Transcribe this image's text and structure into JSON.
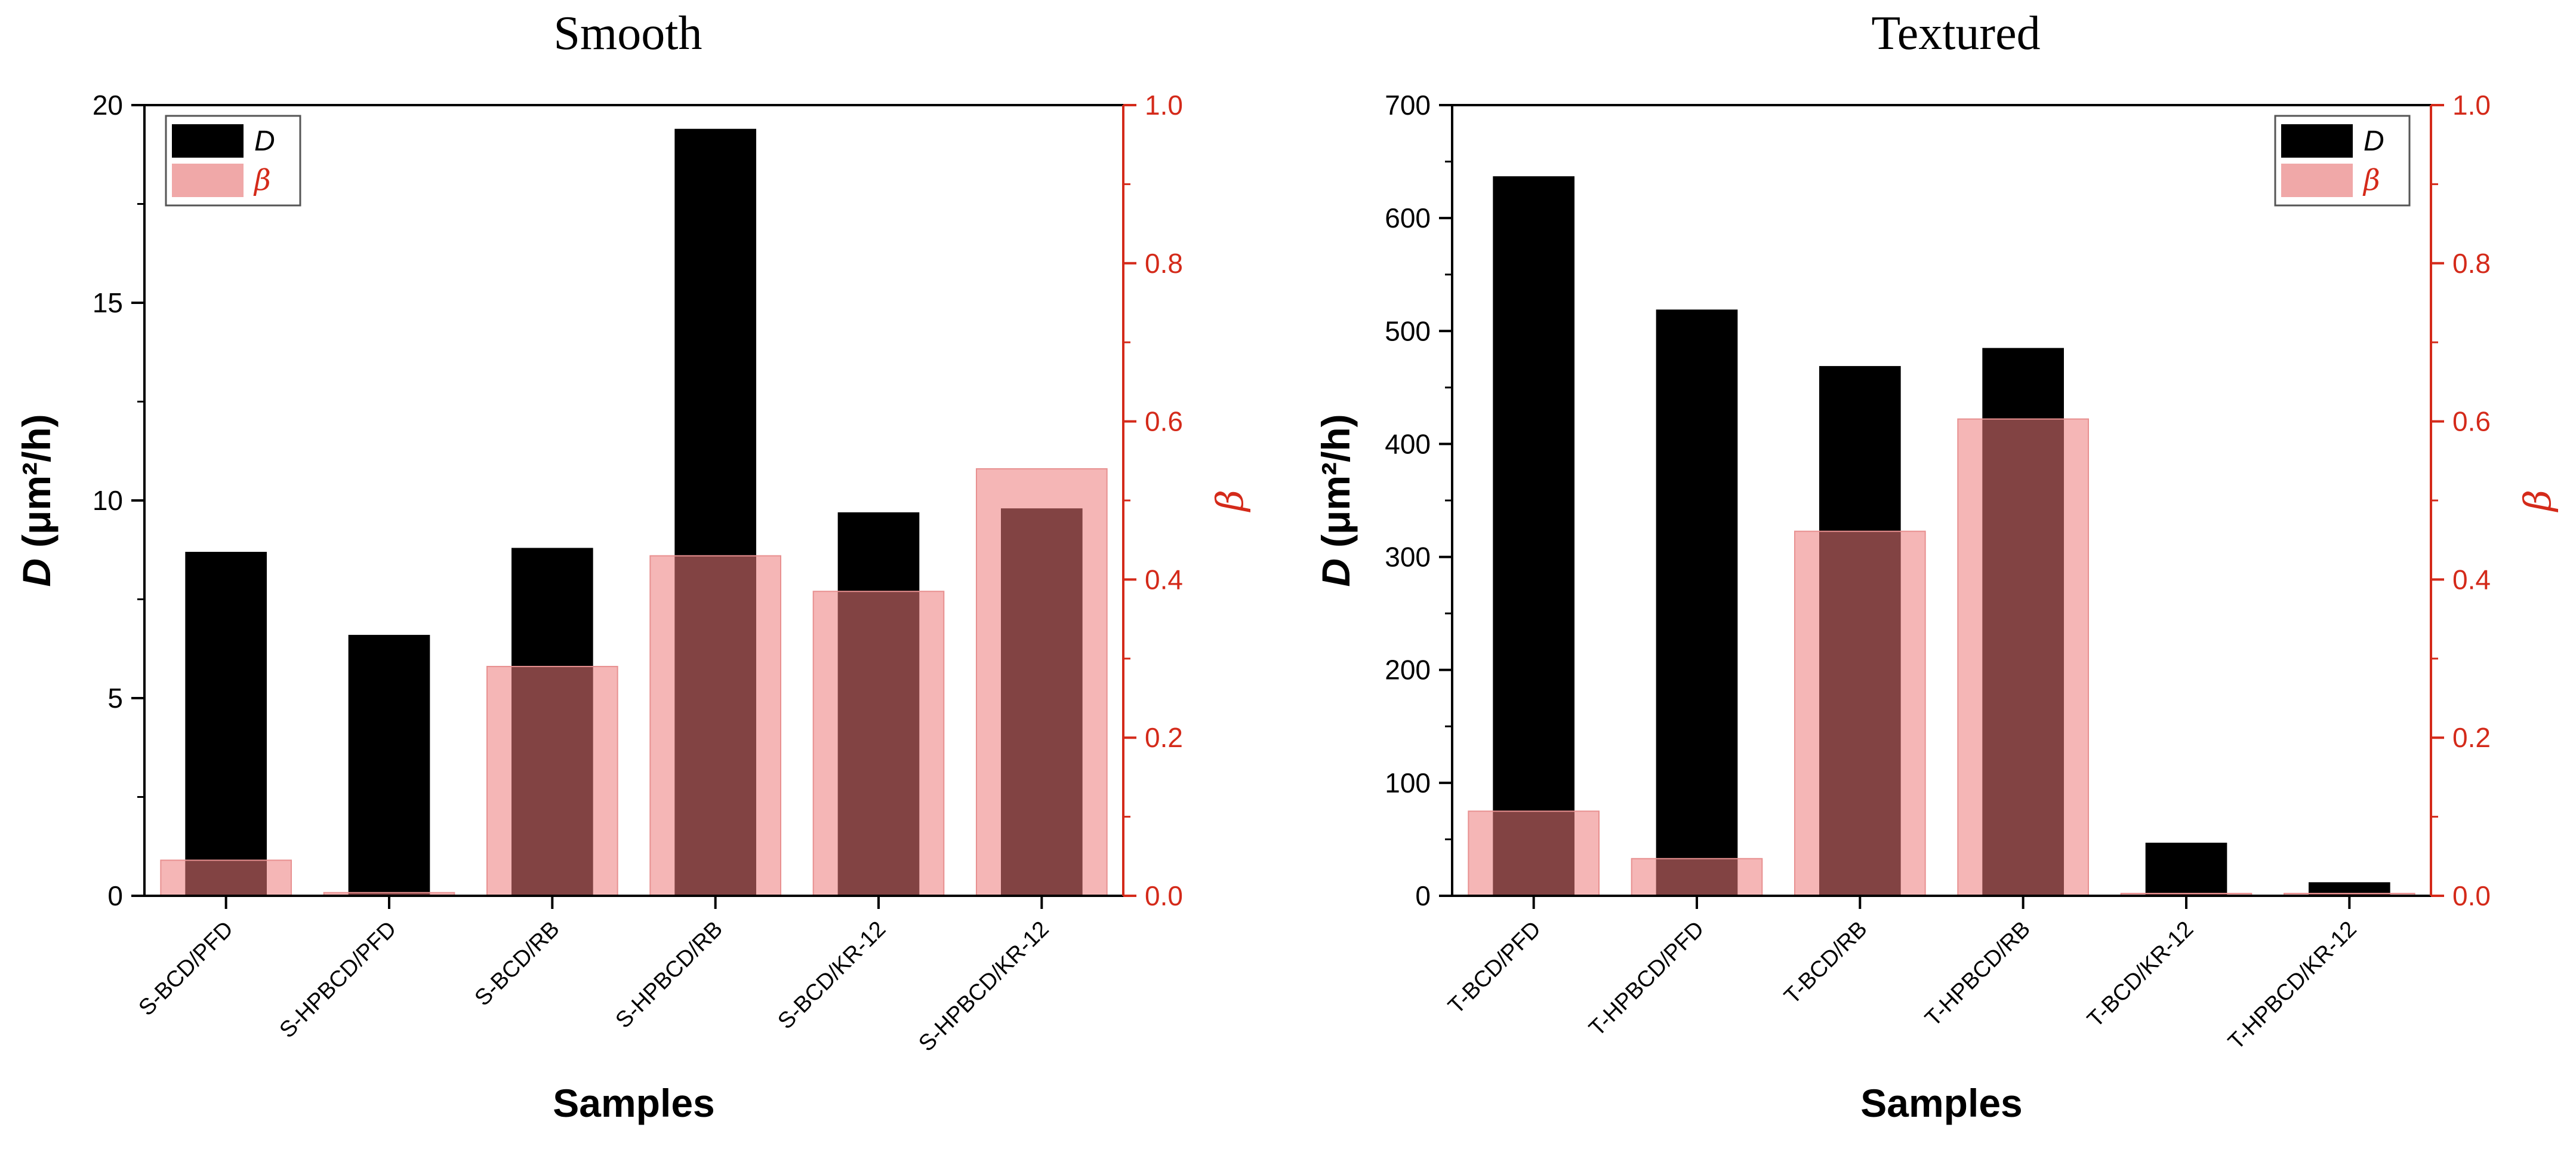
{
  "colors": {
    "d_bar": "#000000",
    "beta_bar": "#f0a8a8",
    "right_axis": "#d42a1a"
  },
  "chart_data": [
    {
      "type": "bar",
      "title": "Smooth",
      "xlabel": "Samples",
      "ylabel_symbol": "D",
      "ylabel_unit": "(μm²/h)",
      "y2label": "β",
      "ylim": [
        0,
        20
      ],
      "yticks": [
        "0",
        "5",
        "10",
        "15",
        "20"
      ],
      "y2lim": [
        0,
        1.0
      ],
      "y2ticks": [
        "0.0",
        "0.2",
        "0.4",
        "0.6",
        "0.8",
        "1.0"
      ],
      "categories": [
        "S-BCD/PFD",
        "S-HPBCD/PFD",
        "S-BCD/RB",
        "S-HPBCD/RB",
        "S-BCD/KR-12",
        "S-HPBCD/KR-12"
      ],
      "series": [
        {
          "name": "D",
          "axis": "left",
          "values": [
            8.7,
            6.6,
            8.8,
            19.4,
            9.7,
            9.8
          ]
        },
        {
          "name": "β",
          "axis": "right",
          "values": [
            0.045,
            0.004,
            0.29,
            0.43,
            0.385,
            0.54
          ]
        }
      ],
      "legend": {
        "position": "top-left",
        "entries": [
          "D",
          "β"
        ]
      }
    },
    {
      "type": "bar",
      "title": "Textured",
      "xlabel": "Samples",
      "ylabel_symbol": "D",
      "ylabel_unit": "(μm²/h)",
      "y2label": "β",
      "ylim": [
        0,
        700
      ],
      "yticks": [
        "0",
        "100",
        "200",
        "300",
        "400",
        "500",
        "600",
        "700"
      ],
      "y2lim": [
        0,
        1.0
      ],
      "y2ticks": [
        "0.0",
        "0.2",
        "0.4",
        "0.6",
        "0.8",
        "1.0"
      ],
      "categories": [
        "T-BCD/PFD",
        "T-HPBCD/PFD",
        "T-BCD/RB",
        "T-HPBCD/RB",
        "T-BCD/KR-12",
        "T-HPBCD/KR-12"
      ],
      "series": [
        {
          "name": "D",
          "axis": "left",
          "values": [
            637,
            519,
            469,
            485,
            47,
            12
          ]
        },
        {
          "name": "β",
          "axis": "right",
          "values": [
            0.107,
            0.047,
            0.461,
            0.603,
            0.003,
            0.003
          ]
        }
      ],
      "legend": {
        "position": "top-right",
        "entries": [
          "D",
          "β"
        ]
      }
    }
  ]
}
